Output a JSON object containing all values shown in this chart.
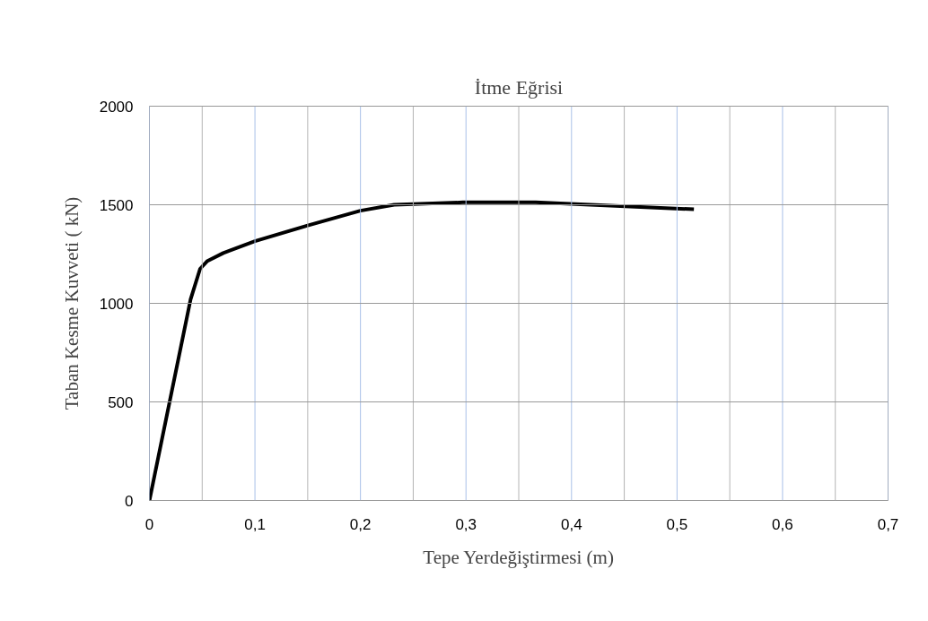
{
  "chart_data": {
    "type": "line",
    "title": "İtme Eğrisi",
    "xlabel": "Tepe Yerdeğiştirmesi (m)",
    "ylabel": "Taban Kesme Kuvveti ( kN)",
    "x": [
      0,
      0.039,
      0.048,
      0.055,
      0.07,
      0.1,
      0.15,
      0.2,
      0.232,
      0.25,
      0.297,
      0.366,
      0.451,
      0.516
    ],
    "series": [
      {
        "color": "#000000",
        "values": [
          0,
          1020,
          1175,
          1215,
          1255,
          1315,
          1395,
          1470,
          1500,
          1503,
          1512,
          1512,
          1492,
          1477
        ]
      }
    ],
    "xlim": [
      0,
      0.7
    ],
    "ylim": [
      0,
      2000
    ],
    "xticks": [
      0,
      {
        "value": 0.05,
        "label": null
      },
      {
        "value": 0.1,
        "label": "0,1"
      },
      {
        "value": 0.15,
        "label": null
      },
      {
        "value": 0.2,
        "label": "0,2"
      },
      {
        "value": 0.25,
        "label": null
      },
      {
        "value": 0.3,
        "label": "0,3"
      },
      {
        "value": 0.35,
        "label": null
      },
      {
        "value": 0.4,
        "label": "0,4"
      },
      {
        "value": 0.45,
        "label": null
      },
      {
        "value": 0.5,
        "label": "0,5"
      },
      {
        "value": 0.55,
        "label": null
      },
      {
        "value": 0.6,
        "label": "0,6"
      },
      {
        "value": 0.65,
        "label": null
      },
      {
        "value": 0.7,
        "label": "0,7"
      }
    ],
    "yticks": [
      0,
      500,
      1000,
      1500,
      2000
    ],
    "grid": true,
    "marker": "none",
    "line_style": "solid"
  }
}
